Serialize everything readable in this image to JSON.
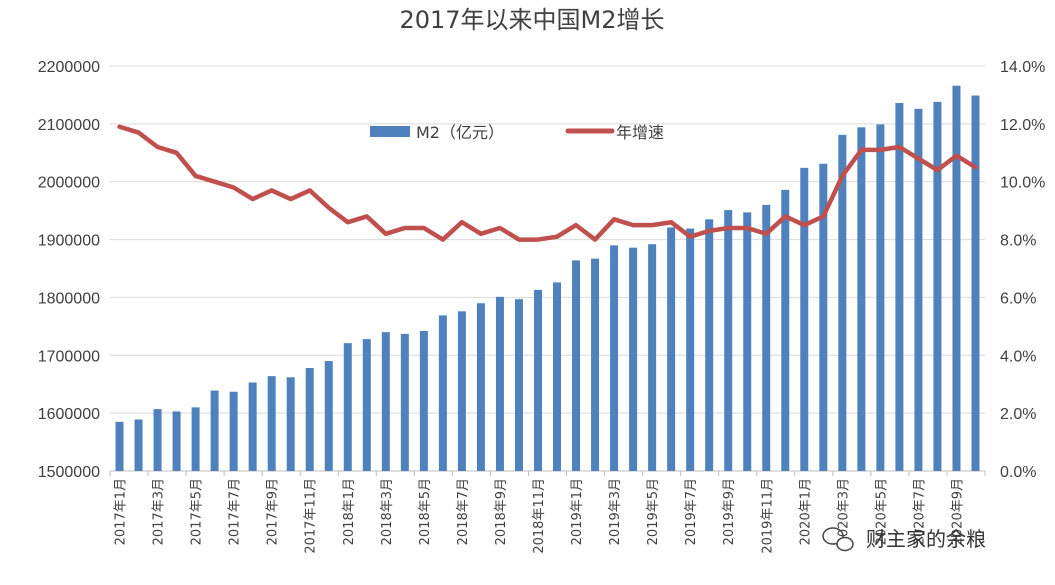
{
  "chart_data": {
    "type": "bar+line",
    "title": "2017年以来中国M2增长",
    "categories": [
      "2017年1月",
      "2017年2月",
      "2017年3月",
      "2017年4月",
      "2017年5月",
      "2017年6月",
      "2017年7月",
      "2017年8月",
      "2017年9月",
      "2017年10月",
      "2017年11月",
      "2017年12月",
      "2018年1月",
      "2018年2月",
      "2018年3月",
      "2018年4月",
      "2018年5月",
      "2018年6月",
      "2018年7月",
      "2018年8月",
      "2018年9月",
      "2018年10月",
      "2018年11月",
      "2018年12月",
      "2019年1月",
      "2019年2月",
      "2019年3月",
      "2019年4月",
      "2019年5月",
      "2019年6月",
      "2019年7月",
      "2019年8月",
      "2019年9月",
      "2019年10月",
      "2019年11月",
      "2019年12月",
      "2020年1月",
      "2020年2月",
      "2020年3月",
      "2020年4月",
      "2020年5月",
      "2020年6月",
      "2020年7月",
      "2020年8月",
      "2020年9月",
      "2020年10月"
    ],
    "tick_labels": [
      "2017年1月",
      "2017年3月",
      "2017年5月",
      "2017年7月",
      "2017年9月",
      "2017年11月",
      "2018年1月",
      "2018年3月",
      "2018年5月",
      "2018年7月",
      "2018年9月",
      "2018年11月",
      "2019年1月",
      "2019年3月",
      "2019年5月",
      "2019年7月",
      "2019年9月",
      "2019年11月",
      "2020年1月",
      "2020年3月",
      "2020年5月",
      "2020年7月",
      "2020年9月"
    ],
    "series": [
      {
        "name": "M2（亿元）",
        "type": "bar",
        "axis": "left",
        "color": "#4F81BD",
        "values": [
          1585000,
          1589000,
          1607000,
          1603000,
          1610000,
          1639000,
          1637000,
          1653000,
          1664000,
          1662000,
          1678000,
          1690000,
          1721000,
          1728000,
          1740000,
          1737000,
          1742000,
          1769000,
          1776000,
          1790000,
          1801000,
          1797000,
          1813000,
          1826000,
          1864000,
          1867000,
          1890000,
          1886000,
          1892000,
          1921000,
          1919000,
          1935000,
          1951000,
          1947000,
          1960000,
          1986000,
          2024000,
          2031000,
          2081000,
          2094000,
          2099000,
          2136000,
          2126000,
          2138000,
          2166000,
          2149000
        ]
      },
      {
        "name": "年增速",
        "type": "line",
        "axis": "right",
        "color": "#C0504D",
        "values": [
          11.9,
          11.7,
          11.2,
          11.0,
          10.2,
          10.0,
          9.8,
          9.4,
          9.7,
          9.4,
          9.7,
          9.1,
          8.6,
          8.8,
          8.2,
          8.4,
          8.4,
          8.0,
          8.6,
          8.2,
          8.4,
          8.0,
          8.0,
          8.1,
          8.5,
          8.0,
          8.7,
          8.5,
          8.5,
          8.6,
          8.1,
          8.3,
          8.4,
          8.4,
          8.2,
          8.8,
          8.5,
          8.8,
          10.2,
          11.1,
          11.1,
          11.2,
          10.8,
          10.4,
          10.9,
          10.5
        ]
      }
    ],
    "left_axis": {
      "ylim": [
        1500000,
        2200000
      ],
      "ticks": [
        "1500000",
        "1600000",
        "1700000",
        "1800000",
        "1900000",
        "2000000",
        "2100000",
        "2200000"
      ]
    },
    "right_axis": {
      "ylim": [
        0,
        14
      ],
      "ticks": [
        "0.0%",
        "2.0%",
        "4.0%",
        "6.0%",
        "8.0%",
        "10.0%",
        "12.0%",
        "14.0%"
      ]
    },
    "grid": true,
    "legend": "top-center"
  },
  "watermark": {
    "text": "财主家的余粮",
    "icon": "wechat-icon"
  }
}
